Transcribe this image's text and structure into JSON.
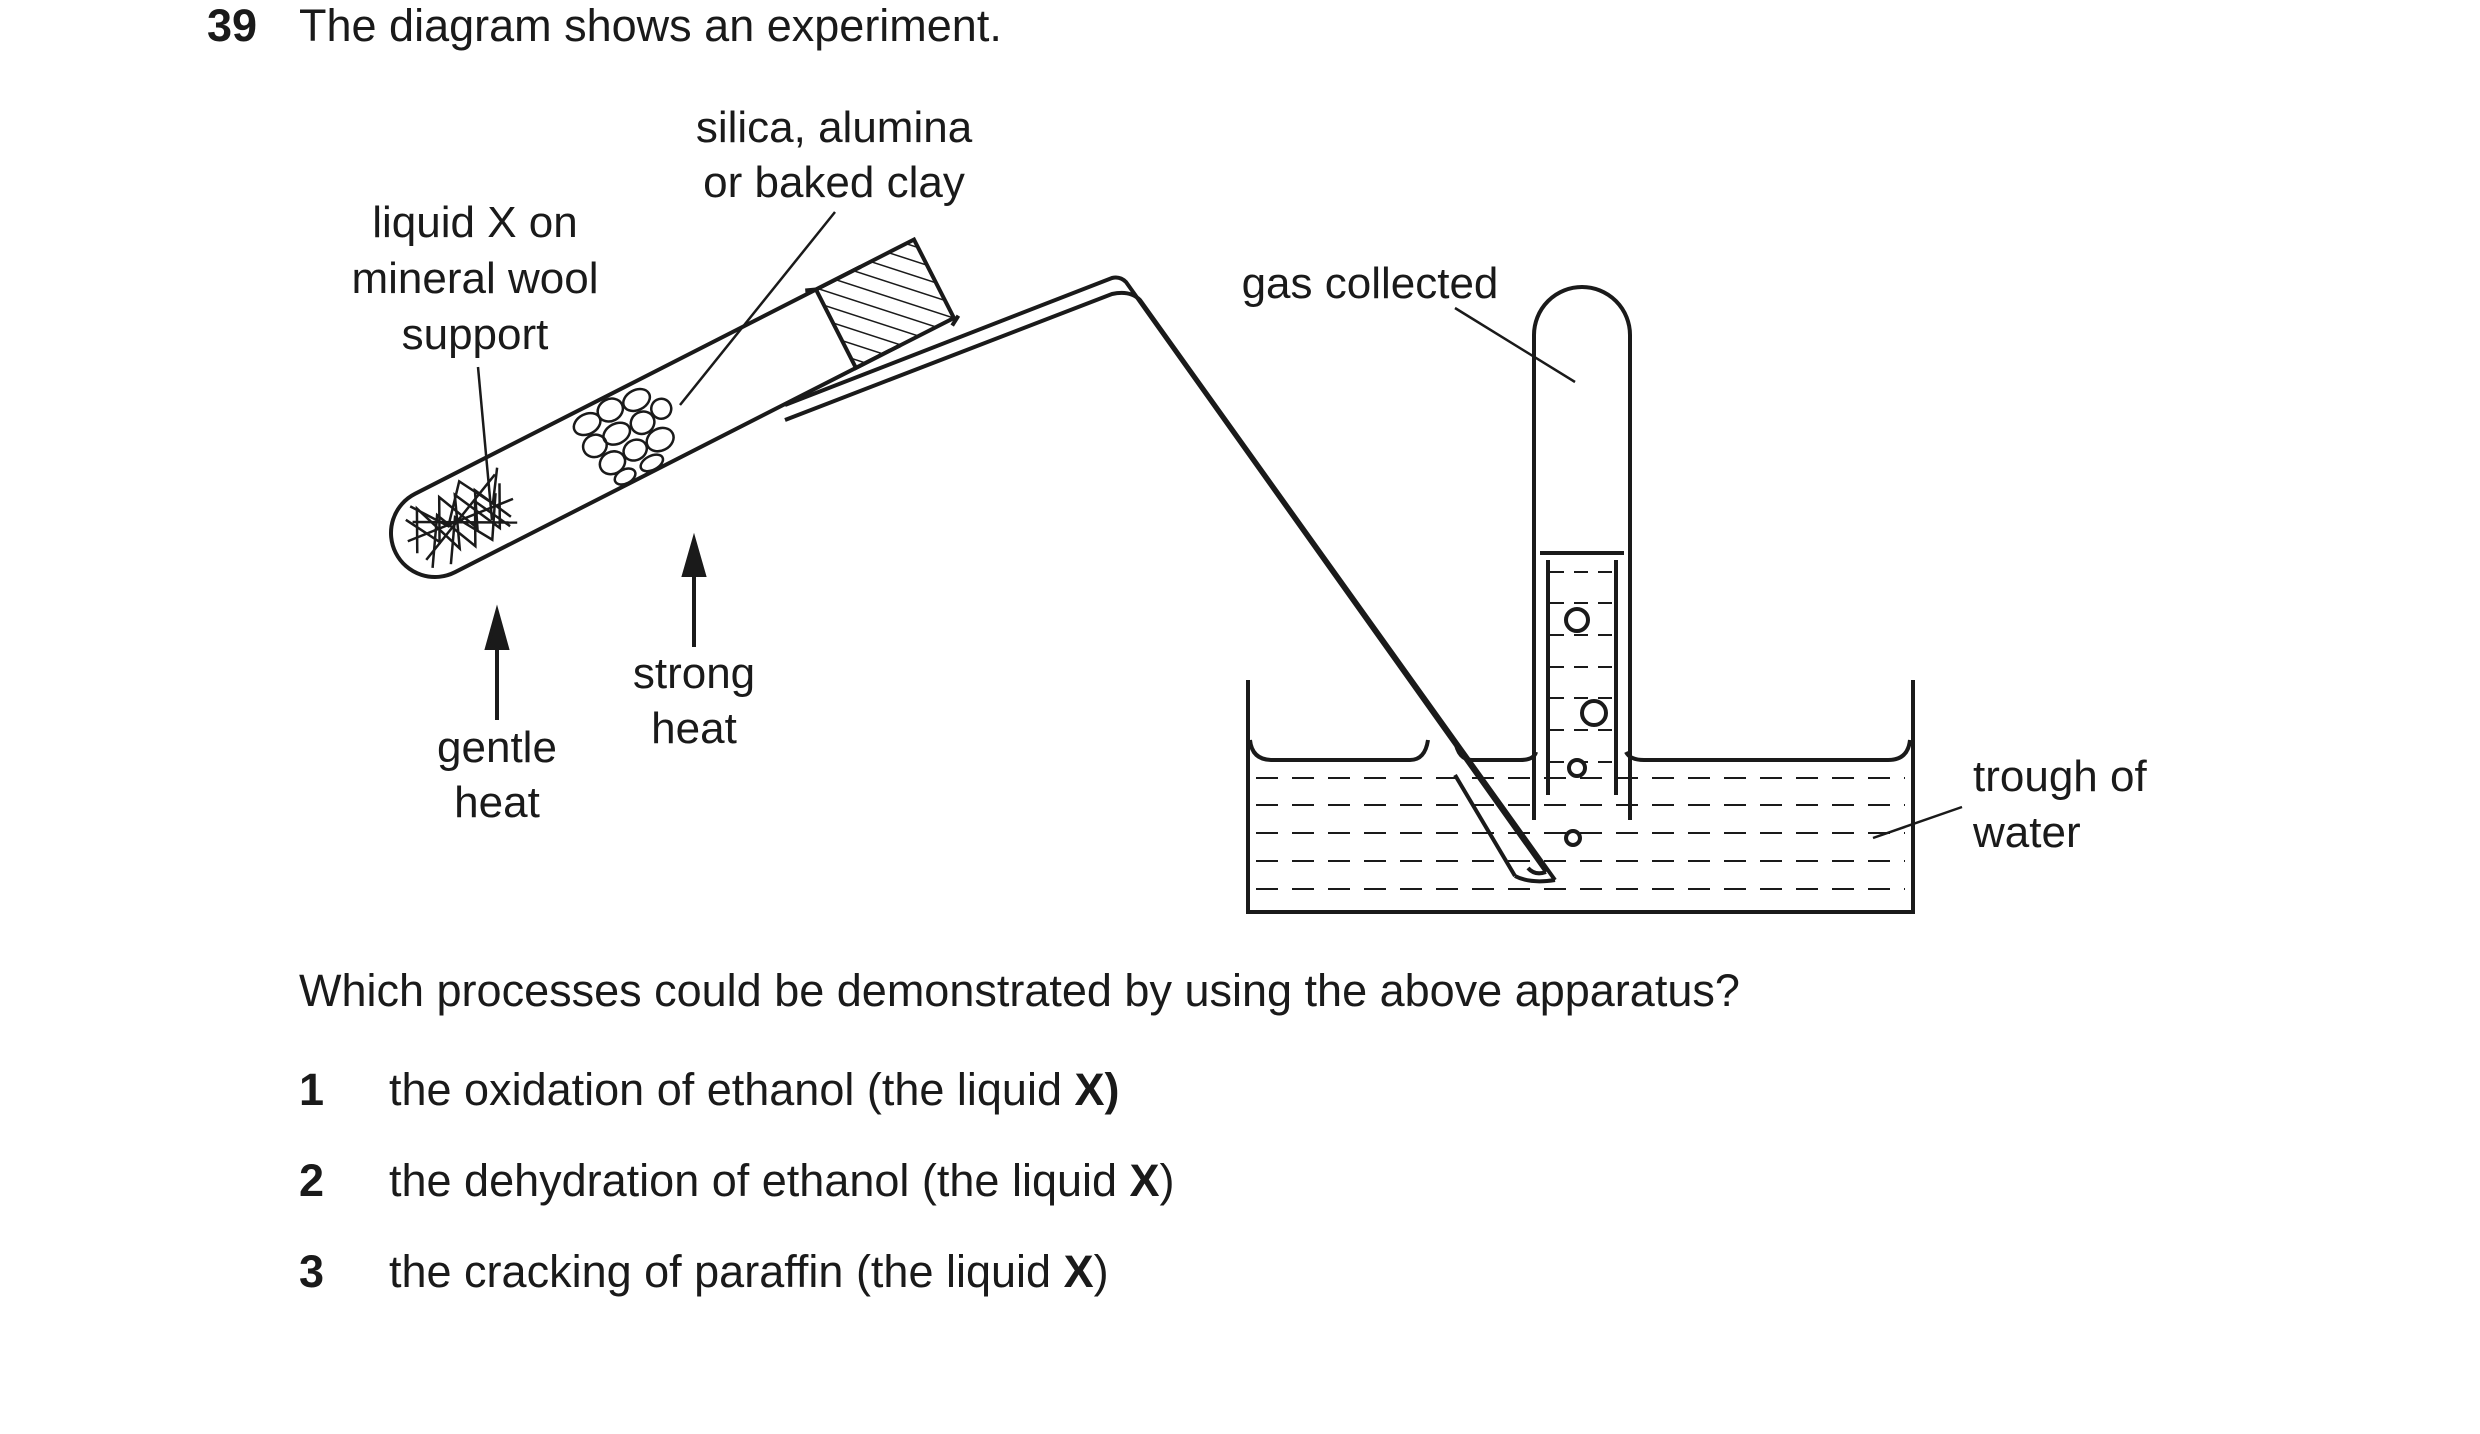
{
  "question": {
    "number": "39",
    "intro": "The diagram shows an experiment.",
    "prompt": "Which processes could be demonstrated by using the above apparatus?"
  },
  "diagram": {
    "labels": {
      "catalyst_line1": "silica, alumina",
      "catalyst_line2": "or baked clay",
      "liquid_line1": "liquid X on",
      "liquid_line2": "mineral wool",
      "liquid_line3": "support",
      "gas": "gas collected",
      "strong_line1": "strong",
      "strong_line2": "heat",
      "gentle_line1": "gentle",
      "gentle_line2": "heat",
      "trough_line1": "trough of",
      "trough_line2": "water"
    }
  },
  "options": [
    {
      "number": "1",
      "text": "the oxidation of ethanol (the liquid ",
      "bold": "X)",
      "tail": ""
    },
    {
      "number": "2",
      "text": "the dehydration of ethanol (the liquid ",
      "bold": "X",
      "tail": ")"
    },
    {
      "number": "3",
      "text": "the cracking of paraffin (the liquid ",
      "bold": "X",
      "tail": ")"
    }
  ]
}
